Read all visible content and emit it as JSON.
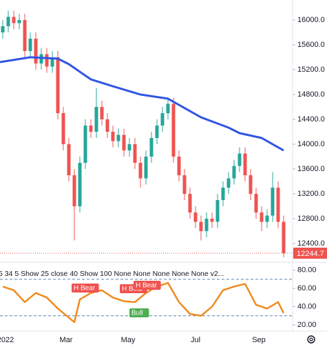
{
  "chart_data": [
    {
      "type": "candlestick",
      "up_color": "#26a69a",
      "down_color": "#ef5350",
      "open": [
        15800,
        15900,
        16050,
        15950,
        16000,
        15500,
        15700,
        15300,
        15450,
        15250,
        15400,
        14500,
        14000,
        13500,
        13000,
        13700,
        14300,
        14200,
        14600,
        14400,
        14200,
        14050,
        14150,
        13900,
        14000,
        13700,
        13450,
        13800,
        14100,
        14300,
        14500,
        14650,
        13800,
        13500,
        13200,
        12900,
        12750,
        12600,
        12800,
        12750,
        13100,
        13300,
        13450,
        13650,
        13850,
        13500,
        13200,
        12900,
        12750,
        12850,
        13300,
        12750
      ],
      "high": [
        16000,
        16150,
        16150,
        16100,
        16100,
        15800,
        15800,
        15550,
        15550,
        15500,
        15500,
        14600,
        14100,
        13600,
        13800,
        14400,
        14400,
        14900,
        14700,
        14500,
        14300,
        14250,
        14250,
        14100,
        14100,
        13800,
        13900,
        14200,
        14400,
        14600,
        14750,
        14750,
        13900,
        13600,
        13300,
        13000,
        12850,
        12900,
        12900,
        13200,
        13400,
        13550,
        13750,
        13950,
        13950,
        13600,
        13300,
        13000,
        12950,
        13550,
        13400,
        12850
      ],
      "low": [
        15700,
        15800,
        15850,
        15850,
        15400,
        15400,
        15200,
        15200,
        15150,
        15150,
        14400,
        13900,
        13400,
        12450,
        12900,
        13600,
        14100,
        14100,
        14300,
        14100,
        13950,
        13950,
        13800,
        13800,
        13600,
        13300,
        13350,
        13700,
        14000,
        14200,
        14400,
        13700,
        13400,
        13100,
        12800,
        12650,
        12450,
        12500,
        12650,
        12650,
        13000,
        13200,
        13350,
        13550,
        13400,
        13100,
        12800,
        12600,
        12650,
        12750,
        12650,
        12180
      ],
      "close": [
        15900,
        16050,
        15950,
        16000,
        15500,
        15700,
        15300,
        15450,
        15250,
        15400,
        14500,
        14000,
        13500,
        13000,
        13700,
        14300,
        14200,
        14600,
        14400,
        14200,
        14050,
        14150,
        13900,
        14000,
        13700,
        13450,
        13800,
        14100,
        14300,
        14500,
        14650,
        13800,
        13500,
        13200,
        12900,
        12750,
        12600,
        12800,
        12750,
        13100,
        13300,
        13450,
        13650,
        13850,
        13500,
        13200,
        12900,
        12750,
        12850,
        13300,
        12750,
        12244.7
      ],
      "series": [
        {
          "color": "#2f55e4",
          "x": [
            -0.5,
            5,
            10,
            12,
            16,
            20,
            25,
            30,
            32,
            36,
            41,
            43,
            47,
            51
          ],
          "values": [
            15322,
            15400,
            15378,
            15289,
            15044,
            14933,
            14800,
            14733,
            14633,
            14433,
            14267,
            14178,
            14100,
            13900
          ]
        }
      ],
      "xlim": [
        -0.5,
        52.5
      ],
      "ylim": [
        12156,
        16322
      ],
      "yticks": [
        {
          "value": 16000,
          "label": "16000.0"
        },
        {
          "value": 15600,
          "label": "15600.0"
        },
        {
          "value": 15200,
          "label": "15200.0"
        },
        {
          "value": 14800,
          "label": "14800.0"
        },
        {
          "value": 14400,
          "label": "14400.0"
        },
        {
          "value": 14000,
          "label": "14000.0"
        },
        {
          "value": 13600,
          "label": "13600.0"
        },
        {
          "value": 13200,
          "label": "13200.0"
        },
        {
          "value": 12800,
          "label": "12800.0"
        },
        {
          "value": 12400,
          "label": "12400.0"
        }
      ]
    },
    {
      "type": "line",
      "title": "5 34 5 Show 25 close 40 Show 100 None None None None None v2...",
      "series": [
        {
          "color": "#f08a1c",
          "x": [
            0,
            2,
            4,
            6,
            8,
            10,
            12,
            13,
            14,
            16,
            18,
            20,
            22,
            24,
            26,
            28,
            30,
            32,
            34,
            36,
            38,
            40,
            42,
            44,
            46,
            48,
            50,
            51
          ],
          "values": [
            62,
            58,
            45,
            55,
            50,
            38,
            28,
            23,
            48,
            55,
            58,
            50,
            46,
            45,
            55,
            62,
            66,
            45,
            32,
            30,
            40,
            58,
            62,
            65,
            42,
            38,
            45,
            33
          ]
        }
      ],
      "levels": [
        70,
        30
      ],
      "annotations": [
        {
          "text": "H Bear",
          "color": "#ef5350"
        },
        {
          "text": "H Bear",
          "color": "#ef5350"
        },
        {
          "text": "H Bear",
          "color": "#ef5350"
        },
        {
          "text": "Bull",
          "color": "#4caf50"
        }
      ],
      "xlim": [
        -0.5,
        52.5
      ],
      "ylim": [
        17,
        85
      ],
      "yticks": [
        {
          "value": 80,
          "label": "80.00"
        },
        {
          "value": 60,
          "label": "60.00"
        },
        {
          "value": 40,
          "label": "40.00"
        },
        {
          "value": 20,
          "label": "20.00"
        }
      ],
      "xticks": [
        {
          "value": 0.5,
          "label": "2022"
        },
        {
          "value": 11.5,
          "label": "Mar"
        },
        {
          "value": 22.75,
          "label": "May"
        },
        {
          "value": 35,
          "label": "Jul"
        },
        {
          "value": 46.5,
          "label": "Sep"
        }
      ]
    }
  ]
}
